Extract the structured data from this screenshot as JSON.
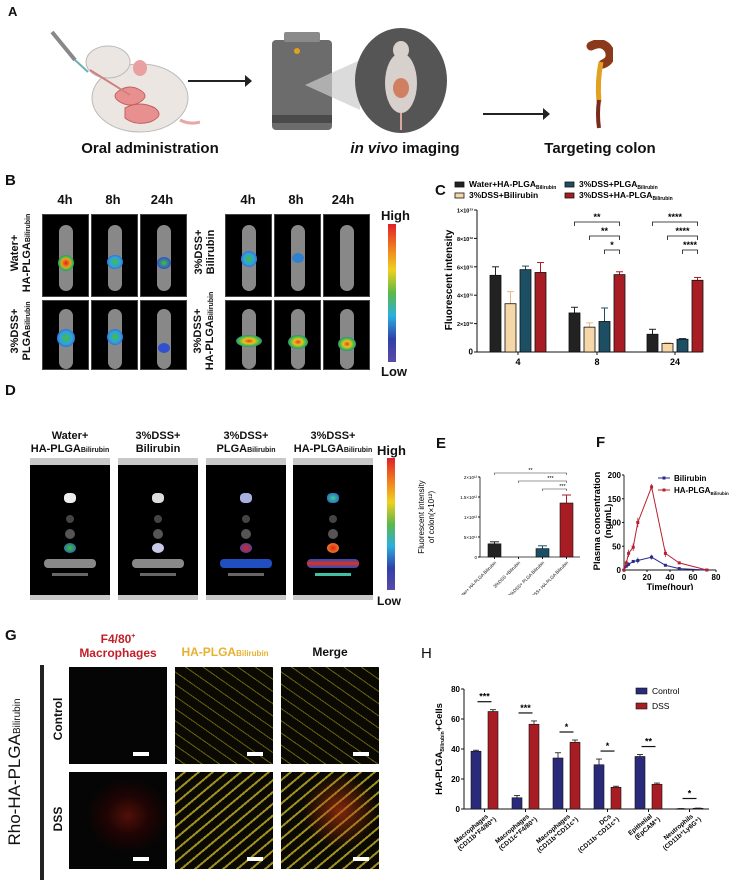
{
  "panels": {
    "A": {
      "label": "A",
      "steps": [
        "Oral administration",
        "in vivo imaging",
        "Targeting colon"
      ],
      "step2_italic": "in vivo",
      "step2_rest": " imaging"
    },
    "B": {
      "label": "B",
      "timepoints": [
        "4h",
        "8h",
        "24h"
      ],
      "groups_left": [
        {
          "line1": "Water+",
          "line2": "HA-PLGA",
          "sub": "Bilirubin"
        },
        {
          "line1": "3%DSS+",
          "line2": "PLGA",
          "sub": "Bilirubin"
        }
      ],
      "groups_right": [
        {
          "line1": "3%DSS+",
          "line2": "Bilirubin",
          "sub": ""
        },
        {
          "line1": "3%DSS+",
          "line2": "HA-PLGA",
          "sub": "Bilirubin"
        }
      ],
      "scale_high": "High",
      "scale_low": "Low"
    },
    "C": {
      "label": "C"
    },
    "D": {
      "label": "D",
      "groups": [
        {
          "line1": "Water+",
          "line2": "HA-PLGA",
          "sub": "Bilirubin"
        },
        {
          "line1": "3%DSS+",
          "line2": "Bilirubin",
          "sub": ""
        },
        {
          "line1": "3%DSS+",
          "line2": "PLGA",
          "sub": "Bilirubin"
        },
        {
          "line1": "3%DSS+",
          "line2": "HA-PLGA",
          "sub": "Bilirubin"
        }
      ],
      "scale_high": "High",
      "scale_low": "Low"
    },
    "E": {
      "label": "E"
    },
    "F": {
      "label": "F"
    },
    "G": {
      "label": "G",
      "columns": [
        {
          "line1": "F4/80",
          "sup": "+",
          "line2": "Macrophages",
          "color": "#c0202a"
        },
        {
          "line1": "HA-PLGA",
          "sub": "Bilirubin",
          "color": "#e8b030"
        },
        {
          "line1": "Merge",
          "color": "#111111"
        }
      ],
      "rows": [
        "Control",
        "DSS"
      ],
      "side_label": "Rho-HA-PLGA",
      "side_label_sub": "Bilirubin"
    },
    "H": {
      "label": "H"
    }
  },
  "chart_data": [
    {
      "id": "C",
      "type": "bar",
      "title": "",
      "xlabel": "Time(hour)",
      "ylabel": "Fluorescent intensity",
      "categories": [
        "4",
        "8",
        "24"
      ],
      "y_ticks": [
        "0",
        "2×10¹²",
        "4×10¹²",
        "6×10¹²",
        "8×10¹²",
        "1×10¹³"
      ],
      "ylim": [
        0,
        10000000000000.0
      ],
      "series": [
        {
          "name": "Water+HA-PLGA Bilirubin",
          "color": "#222222",
          "values": [
            5400000000000.0,
            2750000000000.0,
            1250000000000.0
          ],
          "errors": [
            600000000000.0,
            400000000000.0,
            350000000000.0
          ]
        },
        {
          "name": "3%DSS+Bilirubin",
          "color": "#f6d8a8",
          "values": [
            3400000000000.0,
            1750000000000.0,
            600000000000.0
          ],
          "errors": [
            850000000000.0,
            300000000000.0,
            50000000000.0
          ]
        },
        {
          "name": "3%DSS+PLGA Bilirubin",
          "color": "#1c4e64",
          "values": [
            5800000000000.0,
            2150000000000.0,
            900000000000.0
          ],
          "errors": [
            250000000000.0,
            950000000000.0,
            50000000000.0
          ]
        },
        {
          "name": "3%DSS+HA-PLGA Bilirubin",
          "color": "#a81c24",
          "values": [
            5600000000000.0,
            5450000000000.0,
            5050000000000.0
          ],
          "errors": [
            700000000000.0,
            200000000000.0,
            200000000000.0
          ]
        }
      ],
      "significance": [
        {
          "group": "8",
          "from": 0,
          "to": 3,
          "label": "**"
        },
        {
          "group": "8",
          "from": 1,
          "to": 3,
          "label": "**"
        },
        {
          "group": "8",
          "from": 2,
          "to": 3,
          "label": "*"
        },
        {
          "group": "24",
          "from": 0,
          "to": 3,
          "label": "****"
        },
        {
          "group": "24",
          "from": 1,
          "to": 3,
          "label": "****"
        },
        {
          "group": "24",
          "from": 2,
          "to": 3,
          "label": "****"
        }
      ],
      "legend": [
        "Water+HA-PLGA",
        "3%DSS+Bilirubin",
        "3%DSS+PLGA",
        "3%DSS+HA-PLGA"
      ],
      "legend_sub": "Bilirubin",
      "legend_position": "top"
    },
    {
      "id": "E",
      "type": "bar",
      "ylabel": "Fluorescent intensity of colon(×10¹²)",
      "categories": [
        "Water+ HA-PLGA Bilirubin",
        "3%DSS +Bilirubin",
        "3%DSS+ PLGA Bilirubin",
        "3%DSS+ HA-PLGA Bilirubin"
      ],
      "y_ticks": [
        "0",
        "5×10¹¹",
        "1×10¹²",
        "1.5×10¹²",
        "2×10¹²"
      ],
      "ylim": [
        0,
        2000000000000.0
      ],
      "values": [
        330000000000.0,
        0,
        210000000000.0,
        1350000000000.0
      ],
      "errors": [
        50000000000.0,
        0,
        70000000000.0,
        200000000000.0
      ],
      "colors": [
        "#222222",
        "#f6d8a8",
        "#1c4e64",
        "#a81c24"
      ],
      "significance": [
        {
          "from": 0,
          "to": 3,
          "label": "**"
        },
        {
          "from": 1,
          "to": 3,
          "label": "***"
        },
        {
          "from": 2,
          "to": 3,
          "label": "***"
        }
      ]
    },
    {
      "id": "F",
      "type": "line",
      "xlabel": "Time(hour)",
      "ylabel": "Plasma concentration (ng/mL)",
      "x_ticks": [
        "0",
        "20",
        "40",
        "60",
        "80"
      ],
      "y_ticks": [
        "0",
        "50",
        "100",
        "150",
        "200"
      ],
      "xlim": [
        0,
        80
      ],
      "ylim": [
        0,
        200
      ],
      "series": [
        {
          "name": "Bilirubin",
          "color": "#2a2a8a",
          "x": [
            0,
            2,
            4,
            8,
            12,
            24,
            36,
            48,
            72
          ],
          "y": [
            0,
            8,
            12,
            18,
            20,
            27,
            10,
            3,
            0
          ],
          "errors": [
            0,
            3,
            4,
            3,
            6,
            5,
            2,
            1,
            0
          ]
        },
        {
          "name": "HA-PLGA Bilirubin",
          "color": "#b82030",
          "x": [
            0,
            2,
            4,
            8,
            12,
            24,
            36,
            48,
            72
          ],
          "y": [
            0,
            15,
            35,
            48,
            100,
            175,
            35,
            15,
            0
          ],
          "errors": [
            0,
            5,
            8,
            8,
            10,
            6,
            8,
            2,
            0
          ]
        }
      ],
      "legend": [
        "Bilirubin",
        "HA-PLGA"
      ],
      "legend_sub": "Bilirubin"
    },
    {
      "id": "H",
      "type": "bar",
      "ylabel": "HA-PLGA Bilirubin +Cells",
      "categories": [
        [
          "Macrophages",
          "(CD11b⁺F4/80⁺)"
        ],
        [
          "Macrophages",
          "(CD11c⁺F4/80⁺)"
        ],
        [
          "Macrophages",
          "(CD11b⁺CD11c⁺)"
        ],
        [
          "DCs",
          "(CD11b⁻CD11c⁺)"
        ],
        [
          "Epithelial",
          "(EpCAM⁺)"
        ],
        [
          "Neutrophils",
          "(CD11b⁺Ly6G⁺)"
        ]
      ],
      "y_ticks": [
        "0",
        "20",
        "40",
        "60",
        "80"
      ],
      "ylim": [
        0,
        80
      ],
      "series": [
        {
          "name": "Control",
          "color": "#2a2a7a",
          "values": [
            38.5,
            7.5,
            34,
            29.5,
            35,
            0.2
          ],
          "errors": [
            0.7,
            1.5,
            3.5,
            3.8,
            1.3,
            0.1
          ]
        },
        {
          "name": "DSS",
          "color": "#a81c24",
          "values": [
            65,
            56.5,
            44.5,
            14.5,
            16.5,
            0.5
          ],
          "errors": [
            1.2,
            2.2,
            1.5,
            0.7,
            0.8,
            0.1
          ]
        }
      ],
      "significance": [
        "***",
        "***",
        "*",
        "*",
        "**",
        "*"
      ],
      "legend": [
        "Control",
        "DSS"
      ],
      "legend_position": "top-right"
    }
  ]
}
